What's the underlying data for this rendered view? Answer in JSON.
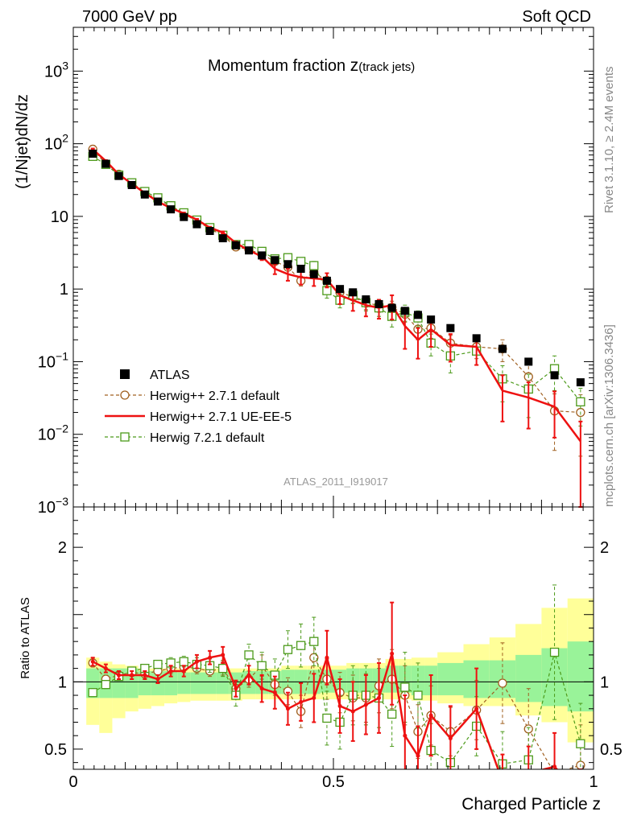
{
  "header": {
    "left": "7000 GeV pp",
    "right": "Soft QCD"
  },
  "side_labels": {
    "rivet": "Rivet 3.1.10, ≥ 2.4M events",
    "mcplots": "mcplots.cern.ch [arXiv:1306.3436]"
  },
  "watermark": "ATLAS_2011_I919017",
  "chart_data": {
    "type": "scatter",
    "title_main": "Momentum fraction ",
    "title_z": "z",
    "title_sub": "(track jets)",
    "xlabel": "Charged Particle z",
    "ylabel": "(1/Njet)dN/dz",
    "ratio_ylabel": "Ratio to ATLAS",
    "xlim": [
      0,
      1
    ],
    "ylim": [
      0.001,
      4000
    ],
    "ratio_ylim": [
      0.35,
      2.3
    ],
    "x_ticks": [
      {
        "v": 0,
        "l": "0"
      },
      {
        "v": 0.5,
        "l": "0.5"
      },
      {
        "v": 1,
        "l": "1"
      }
    ],
    "y_ticks": [
      {
        "v": 0.001,
        "b": "10",
        "e": "−3"
      },
      {
        "v": 0.01,
        "b": "10",
        "e": "−2"
      },
      {
        "v": 0.1,
        "b": "10",
        "e": "−1"
      },
      {
        "v": 1,
        "b": "1",
        "e": ""
      },
      {
        "v": 10,
        "b": "10",
        "e": ""
      },
      {
        "v": 100,
        "b": "10",
        "e": "2"
      },
      {
        "v": 1000,
        "b": "10",
        "e": "3"
      }
    ],
    "ratio_ticks": [
      {
        "v": 0.5,
        "l": "0.5"
      },
      {
        "v": 1,
        "l": "1"
      },
      {
        "v": 2,
        "l": "2"
      }
    ],
    "legend": [
      {
        "key": "atlas",
        "label": "ATLAS"
      },
      {
        "key": "h271",
        "label": "Herwig++ 2.7.1 default"
      },
      {
        "key": "ueee5",
        "label": "Herwig++ 2.7.1 UE-EE-5"
      },
      {
        "key": "h721",
        "label": "Herwig 7.2.1 default"
      }
    ],
    "x": [
      0.0375,
      0.0625,
      0.0875,
      0.1125,
      0.1375,
      0.1625,
      0.1875,
      0.2125,
      0.2375,
      0.2625,
      0.2875,
      0.3125,
      0.3375,
      0.3625,
      0.3875,
      0.4125,
      0.4375,
      0.4625,
      0.4875,
      0.5125,
      0.5375,
      0.5625,
      0.5875,
      0.6125,
      0.6375,
      0.6625,
      0.6875,
      0.725,
      0.775,
      0.825,
      0.875,
      0.925,
      0.975
    ],
    "x_err": [
      0.0125,
      0.0125,
      0.0125,
      0.0125,
      0.0125,
      0.0125,
      0.0125,
      0.0125,
      0.0125,
      0.0125,
      0.0125,
      0.0125,
      0.0125,
      0.0125,
      0.0125,
      0.0125,
      0.0125,
      0.0125,
      0.0125,
      0.0125,
      0.0125,
      0.0125,
      0.0125,
      0.0125,
      0.0125,
      0.0125,
      0.0125,
      0.025,
      0.025,
      0.025,
      0.025,
      0.025,
      0.025
    ],
    "series": [
      {
        "name": "ATLAS",
        "key": "atlas",
        "color": "#000000",
        "values": [
          73,
          53,
          36,
          27,
          20,
          16,
          12.5,
          9.8,
          7.8,
          6.3,
          5.0,
          4.0,
          3.4,
          2.9,
          2.5,
          2.2,
          1.9,
          1.6,
          1.3,
          1.0,
          0.9,
          0.72,
          0.62,
          0.55,
          0.5,
          0.44,
          0.38,
          0.29,
          0.21,
          0.15,
          0.1,
          0.065,
          0.052
        ]
      },
      {
        "name": "Herwig++ 2.7.1 default",
        "key": "h271",
        "color": "#a06020",
        "values": [
          84,
          53,
          38,
          29,
          21,
          17,
          14,
          10.8,
          8.6,
          6.8,
          5.4,
          3.8,
          3.5,
          3.0,
          2.4,
          2.0,
          1.3,
          1.7,
          1.3,
          0.9,
          0.78,
          0.64,
          0.6,
          0.56,
          0.45,
          0.28,
          0.29,
          0.18,
          0.16,
          0.15,
          0.062,
          0.021,
          0.02
        ],
        "errors": [
          2,
          1.5,
          1,
          0.8,
          0.6,
          0.5,
          0.4,
          0.3,
          0.25,
          0.2,
          0.2,
          0.2,
          0.2,
          0.2,
          0.2,
          0.2,
          0.2,
          0.2,
          0.2,
          0.15,
          0.15,
          0.12,
          0.12,
          0.12,
          0.1,
          0.08,
          0.08,
          0.05,
          0.05,
          0.05,
          0.03,
          0.015,
          0.015
        ]
      },
      {
        "name": "Herwig++ 2.7.1 UE-EE-5",
        "key": "ueee5",
        "color": "#ee1111",
        "values": [
          84,
          58,
          38,
          28,
          21,
          16,
          13,
          11,
          9,
          7,
          6,
          4.3,
          3.4,
          2.8,
          1.9,
          1.6,
          1.45,
          1.4,
          1.35,
          0.82,
          0.7,
          0.6,
          0.55,
          0.6,
          0.31,
          0.2,
          0.28,
          0.17,
          0.16,
          0.04,
          0.032,
          0.024,
          0.008
        ],
        "errors": [
          2,
          1.5,
          1,
          0.8,
          0.6,
          0.5,
          0.4,
          0.3,
          0.25,
          0.2,
          0.2,
          0.2,
          0.2,
          0.3,
          0.3,
          0.3,
          0.3,
          0.3,
          0.3,
          0.2,
          0.2,
          0.18,
          0.16,
          0.22,
          0.16,
          0.09,
          0.12,
          0.07,
          0.07,
          0.025,
          0.02,
          0.015,
          0.007
        ]
      },
      {
        "name": "Herwig 7.2.1 default",
        "key": "h721",
        "color": "#4c9a1a",
        "values": [
          67,
          52,
          37,
          29,
          22,
          18,
          14,
          11.2,
          8.9,
          7.0,
          5.5,
          4.1,
          4.1,
          3.3,
          2.6,
          2.7,
          2.4,
          2.1,
          0.95,
          0.7,
          0.82,
          0.65,
          0.55,
          0.42,
          0.48,
          0.4,
          0.18,
          0.12,
          0.14,
          0.058,
          0.042,
          0.08,
          0.028
        ],
        "errors": [
          2,
          1.5,
          1,
          0.8,
          0.6,
          0.5,
          0.4,
          0.3,
          0.25,
          0.2,
          0.2,
          0.2,
          0.2,
          0.2,
          0.25,
          0.3,
          0.3,
          0.3,
          0.2,
          0.15,
          0.18,
          0.15,
          0.13,
          0.12,
          0.12,
          0.1,
          0.06,
          0.05,
          0.05,
          0.03,
          0.025,
          0.04,
          0.015
        ]
      }
    ],
    "ratio_series": [
      {
        "key": "h271",
        "values": [
          1.14,
          1.02,
          1.05,
          1.07,
          1.06,
          1.08,
          1.1,
          1.11,
          1.1,
          1.08,
          1.1,
          0.95,
          1.02,
          1.12,
          0.98,
          0.93,
          0.78,
          1.18,
          1.02,
          0.92,
          0.88,
          0.88,
          0.97,
          1.02,
          0.9,
          0.63,
          0.75,
          0.63,
          0.79,
          0.99,
          0.65,
          0.32,
          0.38
        ],
        "errors": [
          0.03,
          0.03,
          0.03,
          0.03,
          0.03,
          0.03,
          0.04,
          0.04,
          0.04,
          0.04,
          0.05,
          0.06,
          0.06,
          0.08,
          0.08,
          0.1,
          0.12,
          0.12,
          0.15,
          0.15,
          0.17,
          0.18,
          0.2,
          0.22,
          0.22,
          0.2,
          0.22,
          0.18,
          0.22,
          0.3,
          0.3,
          0.3,
          0.3
        ]
      },
      {
        "key": "ueee5",
        "values": [
          1.15,
          1.1,
          1.05,
          1.05,
          1.05,
          1.02,
          1.08,
          1.08,
          1.15,
          1.18,
          1.2,
          0.95,
          1.05,
          0.95,
          0.92,
          0.8,
          0.85,
          0.88,
          1.18,
          0.82,
          0.78,
          0.83,
          0.88,
          1.21,
          0.6,
          0.45,
          0.75,
          0.58,
          0.8,
          0.26,
          0.32,
          0.37,
          0.15
        ],
        "errors": [
          0.03,
          0.03,
          0.03,
          0.03,
          0.03,
          0.03,
          0.04,
          0.04,
          0.05,
          0.05,
          0.06,
          0.06,
          0.07,
          0.1,
          0.12,
          0.12,
          0.14,
          0.18,
          0.2,
          0.2,
          0.22,
          0.22,
          0.26,
          0.38,
          0.3,
          0.22,
          0.3,
          0.24,
          0.3,
          0.2,
          0.2,
          0.25,
          0.2
        ]
      },
      {
        "key": "h721",
        "values": [
          0.92,
          0.98,
          1.04,
          1.08,
          1.1,
          1.13,
          1.14,
          1.15,
          1.13,
          1.12,
          1.1,
          0.9,
          1.2,
          1.12,
          1.05,
          1.24,
          1.27,
          1.3,
          0.73,
          0.7,
          0.9,
          0.9,
          0.88,
          0.76,
          0.96,
          0.9,
          0.49,
          0.4,
          0.67,
          0.39,
          0.42,
          1.22,
          0.54
        ],
        "errors": [
          0.03,
          0.03,
          0.03,
          0.03,
          0.03,
          0.03,
          0.04,
          0.04,
          0.05,
          0.05,
          0.06,
          0.08,
          0.08,
          0.1,
          0.12,
          0.14,
          0.16,
          0.18,
          0.2,
          0.2,
          0.22,
          0.22,
          0.22,
          0.24,
          0.26,
          0.24,
          0.2,
          0.2,
          0.22,
          0.24,
          0.24,
          0.5,
          0.3
        ]
      }
    ],
    "band_green": [
      [
        0.88,
        1.1
      ],
      [
        0.88,
        1.1
      ],
      [
        0.88,
        1.1
      ],
      [
        0.88,
        1.1
      ],
      [
        0.9,
        1.08
      ],
      [
        0.9,
        1.08
      ],
      [
        0.9,
        1.08
      ],
      [
        0.91,
        1.07
      ],
      [
        0.91,
        1.07
      ],
      [
        0.91,
        1.07
      ],
      [
        0.91,
        1.07
      ],
      [
        0.91,
        1.07
      ],
      [
        0.91,
        1.08
      ],
      [
        0.91,
        1.08
      ],
      [
        0.91,
        1.08
      ],
      [
        0.91,
        1.09
      ],
      [
        0.91,
        1.09
      ],
      [
        0.91,
        1.09
      ],
      [
        0.92,
        1.09
      ],
      [
        0.92,
        1.09
      ],
      [
        0.92,
        1.1
      ],
      [
        0.92,
        1.1
      ],
      [
        0.92,
        1.1
      ],
      [
        0.92,
        1.12
      ],
      [
        0.92,
        1.12
      ],
      [
        0.9,
        1.12
      ],
      [
        0.9,
        1.12
      ],
      [
        0.9,
        1.14
      ],
      [
        0.88,
        1.16
      ],
      [
        0.88,
        1.16
      ],
      [
        0.85,
        1.2
      ],
      [
        0.82,
        1.25
      ],
      [
        0.78,
        1.3
      ]
    ],
    "band_yellow": [
      [
        0.68,
        1.18
      ],
      [
        0.62,
        1.15
      ],
      [
        0.73,
        1.13
      ],
      [
        0.78,
        1.12
      ],
      [
        0.8,
        1.1
      ],
      [
        0.82,
        1.1
      ],
      [
        0.84,
        1.1
      ],
      [
        0.85,
        1.1
      ],
      [
        0.86,
        1.1
      ],
      [
        0.86,
        1.1
      ],
      [
        0.86,
        1.1
      ],
      [
        0.86,
        1.1
      ],
      [
        0.87,
        1.1
      ],
      [
        0.87,
        1.1
      ],
      [
        0.87,
        1.1
      ],
      [
        0.87,
        1.12
      ],
      [
        0.87,
        1.12
      ],
      [
        0.87,
        1.12
      ],
      [
        0.87,
        1.12
      ],
      [
        0.87,
        1.12
      ],
      [
        0.87,
        1.14
      ],
      [
        0.87,
        1.14
      ],
      [
        0.87,
        1.14
      ],
      [
        0.87,
        1.17
      ],
      [
        0.87,
        1.17
      ],
      [
        0.86,
        1.18
      ],
      [
        0.86,
        1.18
      ],
      [
        0.84,
        1.22
      ],
      [
        0.82,
        1.28
      ],
      [
        0.82,
        1.33
      ],
      [
        0.75,
        1.43
      ],
      [
        0.7,
        1.55
      ],
      [
        0.55,
        1.62
      ]
    ]
  }
}
